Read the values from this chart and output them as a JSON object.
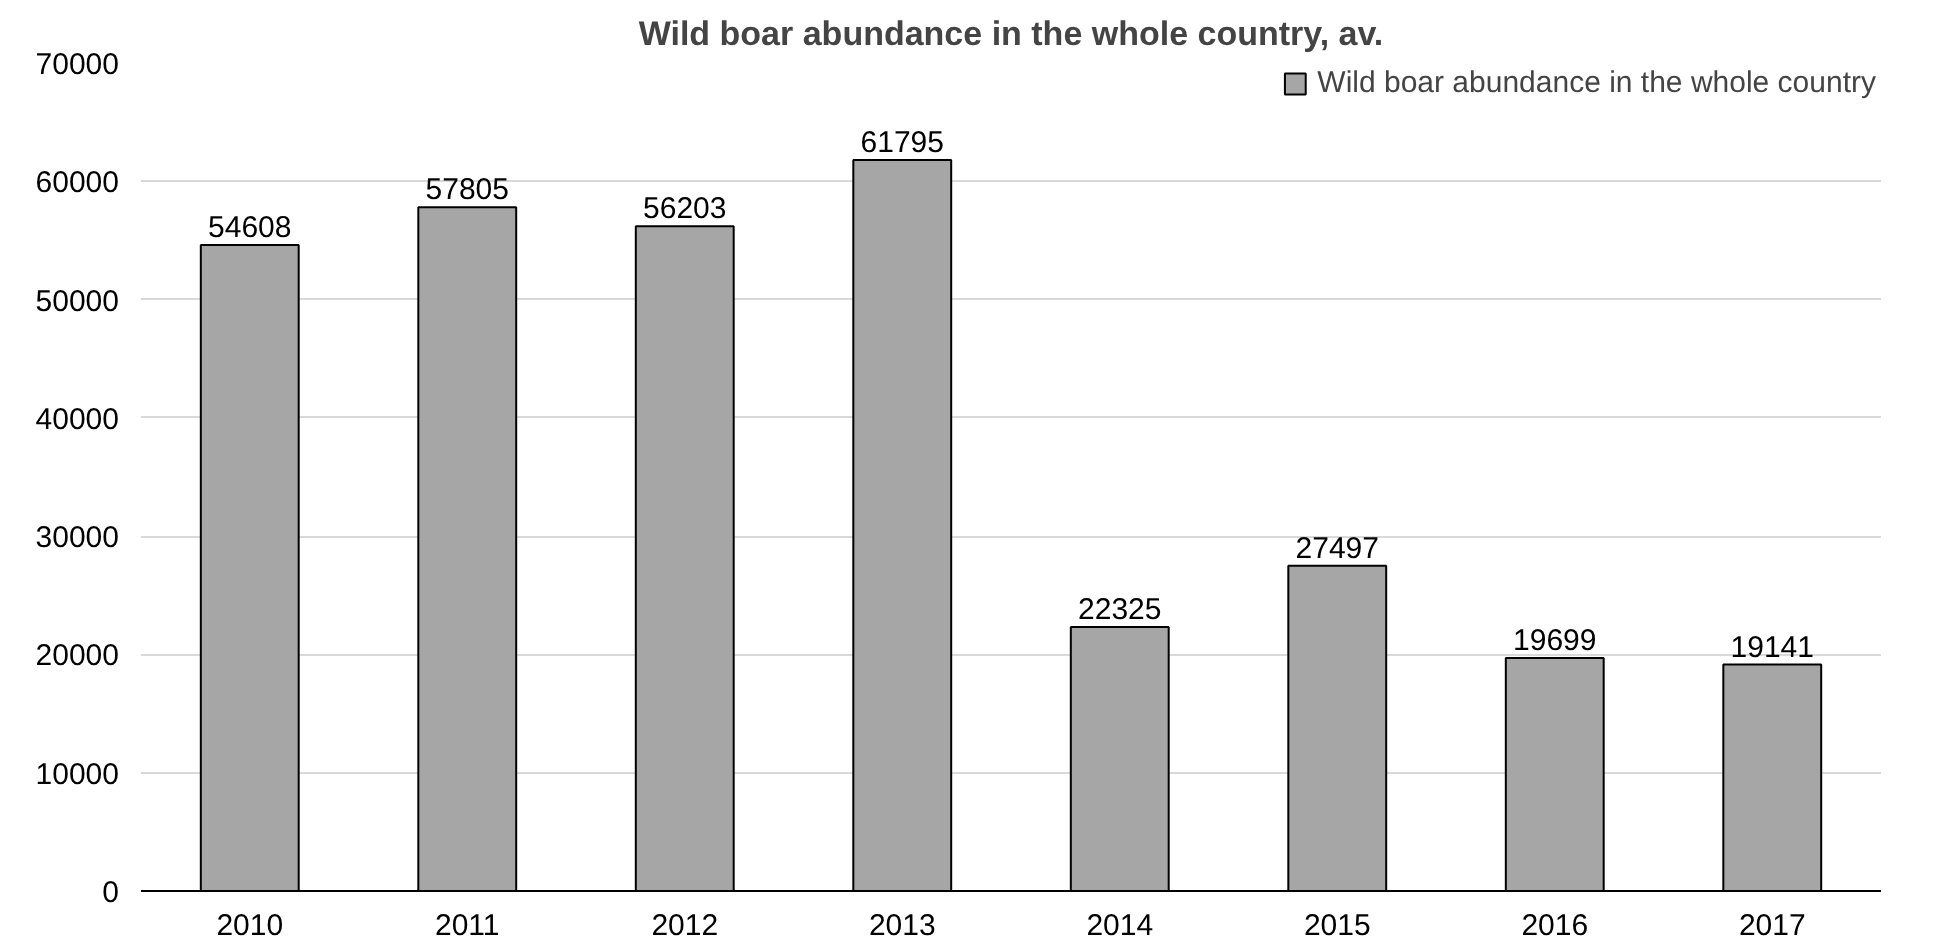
{
  "chart_data": {
    "type": "bar",
    "title": "Wild boar abundance in the whole country, av.",
    "categories": [
      "2010",
      "2011",
      "2012",
      "2013",
      "2014",
      "2015",
      "2016",
      "2017"
    ],
    "series": [
      {
        "name": "Wild boar abundance in the whole country",
        "color": "#a6a6a6",
        "values": [
          54608,
          57805,
          56203,
          61795,
          22325,
          27497,
          19699,
          19141
        ]
      }
    ],
    "ylim": [
      0,
      70000
    ],
    "yticks": [
      0,
      10000,
      20000,
      30000,
      40000,
      50000,
      60000,
      70000
    ],
    "grid": "y",
    "legend": "top right",
    "data_labels": true
  }
}
